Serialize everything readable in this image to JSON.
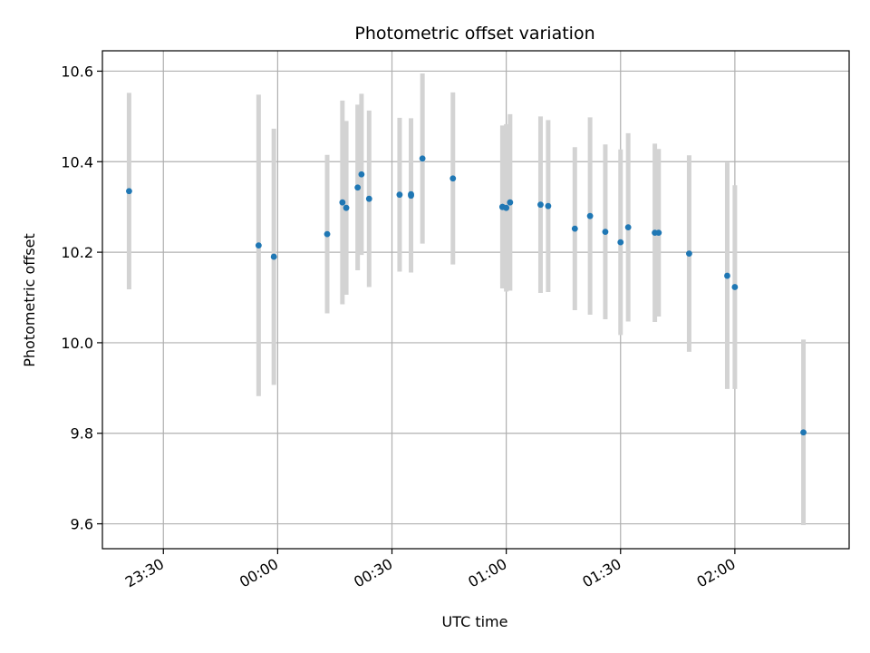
{
  "chart_data": {
    "type": "scatter",
    "title": "Photometric offset variation",
    "xlabel": "UTC time",
    "ylabel": "Photometric offset",
    "x_unit": "UTC time (HH:MM)",
    "xlim": [
      "23:14",
      "02:30"
    ],
    "ylim": [
      9.545,
      10.645
    ],
    "x_ticks": [
      "23:30",
      "00:00",
      "00:30",
      "01:00",
      "01:30",
      "02:00"
    ],
    "y_ticks": [
      "9.6",
      "9.8",
      "10.0",
      "10.2",
      "10.4",
      "10.6"
    ],
    "grid": true,
    "colors": {
      "points": "#1f77b4",
      "errorbars": "#d3d3d3",
      "grid": "#b0b0b0"
    },
    "series": [
      {
        "points": [
          {
            "x": "23:21",
            "y": 10.335,
            "err": 0.217
          },
          {
            "x": "23:55",
            "y": 10.215,
            "err": 0.333
          },
          {
            "x": "23:59",
            "y": 10.19,
            "err": 0.283
          },
          {
            "x": "00:13",
            "y": 10.24,
            "err": 0.175
          },
          {
            "x": "00:17",
            "y": 10.31,
            "err": 0.225
          },
          {
            "x": "00:18",
            "y": 10.298,
            "err": 0.192
          },
          {
            "x": "00:21",
            "y": 10.343,
            "err": 0.183
          },
          {
            "x": "00:22",
            "y": 10.372,
            "err": 0.178
          },
          {
            "x": "00:24",
            "y": 10.318,
            "err": 0.195
          },
          {
            "x": "00:32",
            "y": 10.327,
            "err": 0.17
          },
          {
            "x": "00:35",
            "y": 10.325,
            "err": 0.17
          },
          {
            "x": "00:35",
            "y": 10.328,
            "err": 0.168
          },
          {
            "x": "00:38",
            "y": 10.407,
            "err": 0.188
          },
          {
            "x": "00:46",
            "y": 10.363,
            "err": 0.19
          },
          {
            "x": "00:59",
            "y": 10.3,
            "err": 0.17
          },
          {
            "x": "00:59",
            "y": 10.3,
            "err": 0.18
          },
          {
            "x": "01:00",
            "y": 10.298,
            "err": 0.185
          },
          {
            "x": "01:01",
            "y": 10.31,
            "err": 0.195
          },
          {
            "x": "01:09",
            "y": 10.305,
            "err": 0.195
          },
          {
            "x": "01:11",
            "y": 10.302,
            "err": 0.19
          },
          {
            "x": "01:18",
            "y": 10.252,
            "err": 0.18
          },
          {
            "x": "01:22",
            "y": 10.28,
            "err": 0.218
          },
          {
            "x": "01:26",
            "y": 10.245,
            "err": 0.193
          },
          {
            "x": "01:30",
            "y": 10.222,
            "err": 0.205
          },
          {
            "x": "01:32",
            "y": 10.255,
            "err": 0.208
          },
          {
            "x": "01:39",
            "y": 10.243,
            "err": 0.197
          },
          {
            "x": "01:40",
            "y": 10.243,
            "err": 0.185
          },
          {
            "x": "01:48",
            "y": 10.197,
            "err": 0.217
          },
          {
            "x": "01:58",
            "y": 10.148,
            "err": 0.25
          },
          {
            "x": "02:00",
            "y": 10.123,
            "err": 0.225
          },
          {
            "x": "02:18",
            "y": 9.802,
            "err": 0.205
          }
        ]
      }
    ]
  }
}
